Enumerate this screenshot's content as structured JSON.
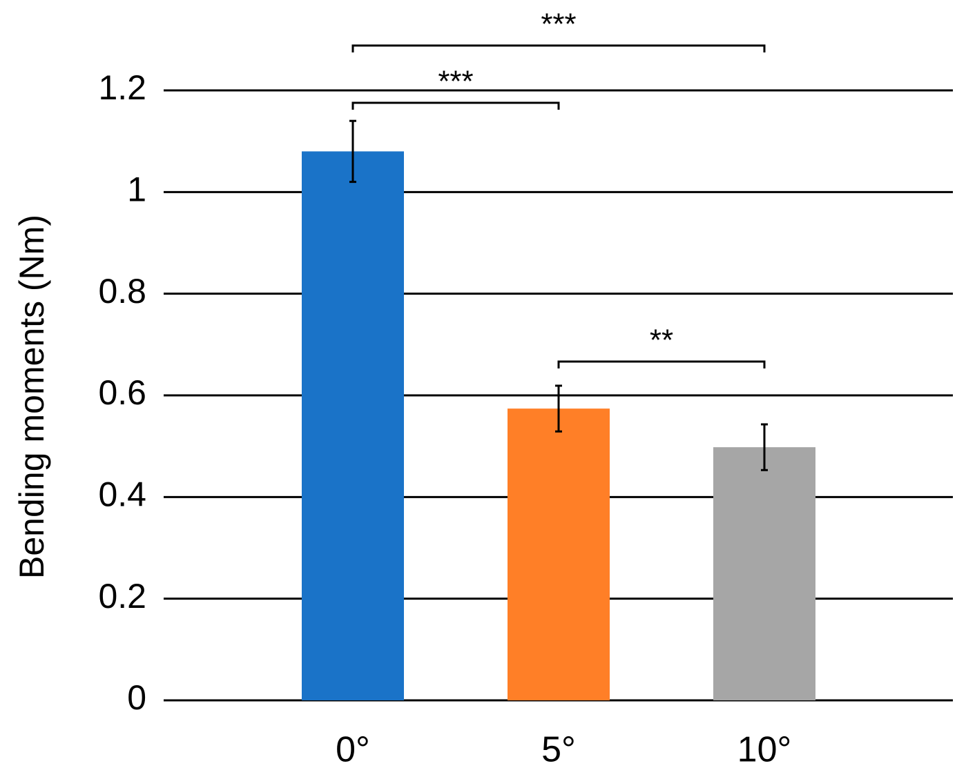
{
  "chart_data": {
    "type": "bar",
    "y_label": "Bending moments (Nm)",
    "categories": [
      "0°",
      "5°",
      "10°"
    ],
    "values": [
      1.08,
      0.574,
      0.498
    ],
    "errors": [
      0.06,
      0.045,
      0.045
    ],
    "colors": [
      "#1a73c8",
      "#ff7f27",
      "#a6a6a6"
    ],
    "ylim": [
      0,
      1.2
    ],
    "yticks": [
      0,
      0.2,
      0.4,
      0.6,
      0.8,
      1,
      1.2
    ],
    "grid": true,
    "annotations": [
      {
        "from": "0°",
        "to": "10°",
        "label": "***"
      },
      {
        "from": "0°",
        "to": "5°",
        "label": "***"
      },
      {
        "from": "5°",
        "to": "10°",
        "label": "**"
      }
    ]
  }
}
